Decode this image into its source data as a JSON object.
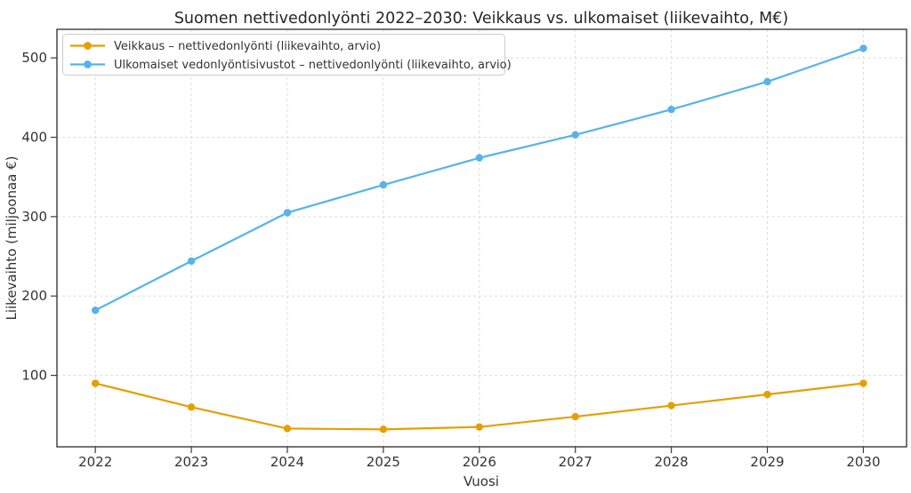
{
  "figure": {
    "title": "Suomen nettivedonlyönti 2022–2030: Veikkaus vs. ulkomaiset (liikevaihto, M€)"
  },
  "chart_data": {
    "type": "line",
    "title": "Suomen nettivedonlyönti 2022–2030: Veikkaus vs. ulkomaiset (liikevaihto, M€)",
    "xlabel": "Vuosi",
    "ylabel": "Liikevaihto (miljoonaa €)",
    "x": [
      2022,
      2023,
      2024,
      2025,
      2026,
      2027,
      2028,
      2029,
      2030
    ],
    "series": [
      {
        "name": "Veikkaus – nettivedonlyönti (liikevaihto, arvio)",
        "color": "#E69F00",
        "values": [
          90,
          60,
          33,
          32,
          35,
          48,
          62,
          76,
          90
        ]
      },
      {
        "name": "Ulkomaiset vedonlyöntisivustot – nettivedonlyönti (liikevaihto, arvio)",
        "color": "#56B4E9",
        "values": [
          182,
          244,
          305,
          340,
          374,
          403,
          435,
          470,
          512
        ]
      }
    ],
    "y_ticks": [
      100,
      200,
      300,
      400,
      500
    ],
    "ylim": [
      10,
      536
    ],
    "xlim": [
      2021.6,
      2030.45
    ],
    "grid": true,
    "grid_color": "#dcdcdc",
    "spine_color": "#3a3a3a",
    "legend_position": "upper left",
    "background_color": "#ffffff"
  }
}
